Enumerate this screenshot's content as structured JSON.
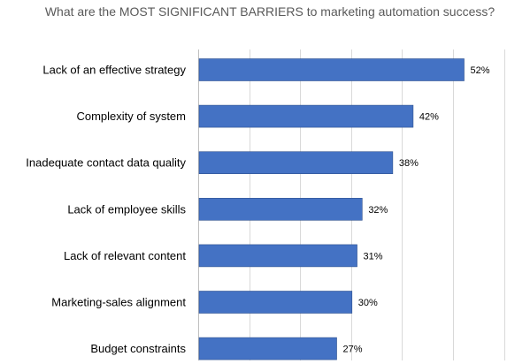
{
  "chart_data": {
    "type": "bar",
    "orientation": "horizontal",
    "title": "What are the MOST SIGNIFICANT BARRIERS to marketing automation success?",
    "categories": [
      "Lack of an effective strategy",
      "Complexity of system",
      "Inadequate contact data quality",
      "Lack of employee skills",
      "Lack of relevant content",
      "Marketing-sales alignment",
      "Budget constraints"
    ],
    "values": [
      52,
      42,
      38,
      32,
      31,
      30,
      27
    ],
    "value_labels": [
      "52%",
      "42%",
      "38%",
      "32%",
      "31%",
      "30%",
      "27%"
    ],
    "unit": "%",
    "xlim": [
      0,
      60
    ],
    "grid": true,
    "legend": "none",
    "bar_color": "#4472c4",
    "grid_color": "#d9d9d9"
  }
}
